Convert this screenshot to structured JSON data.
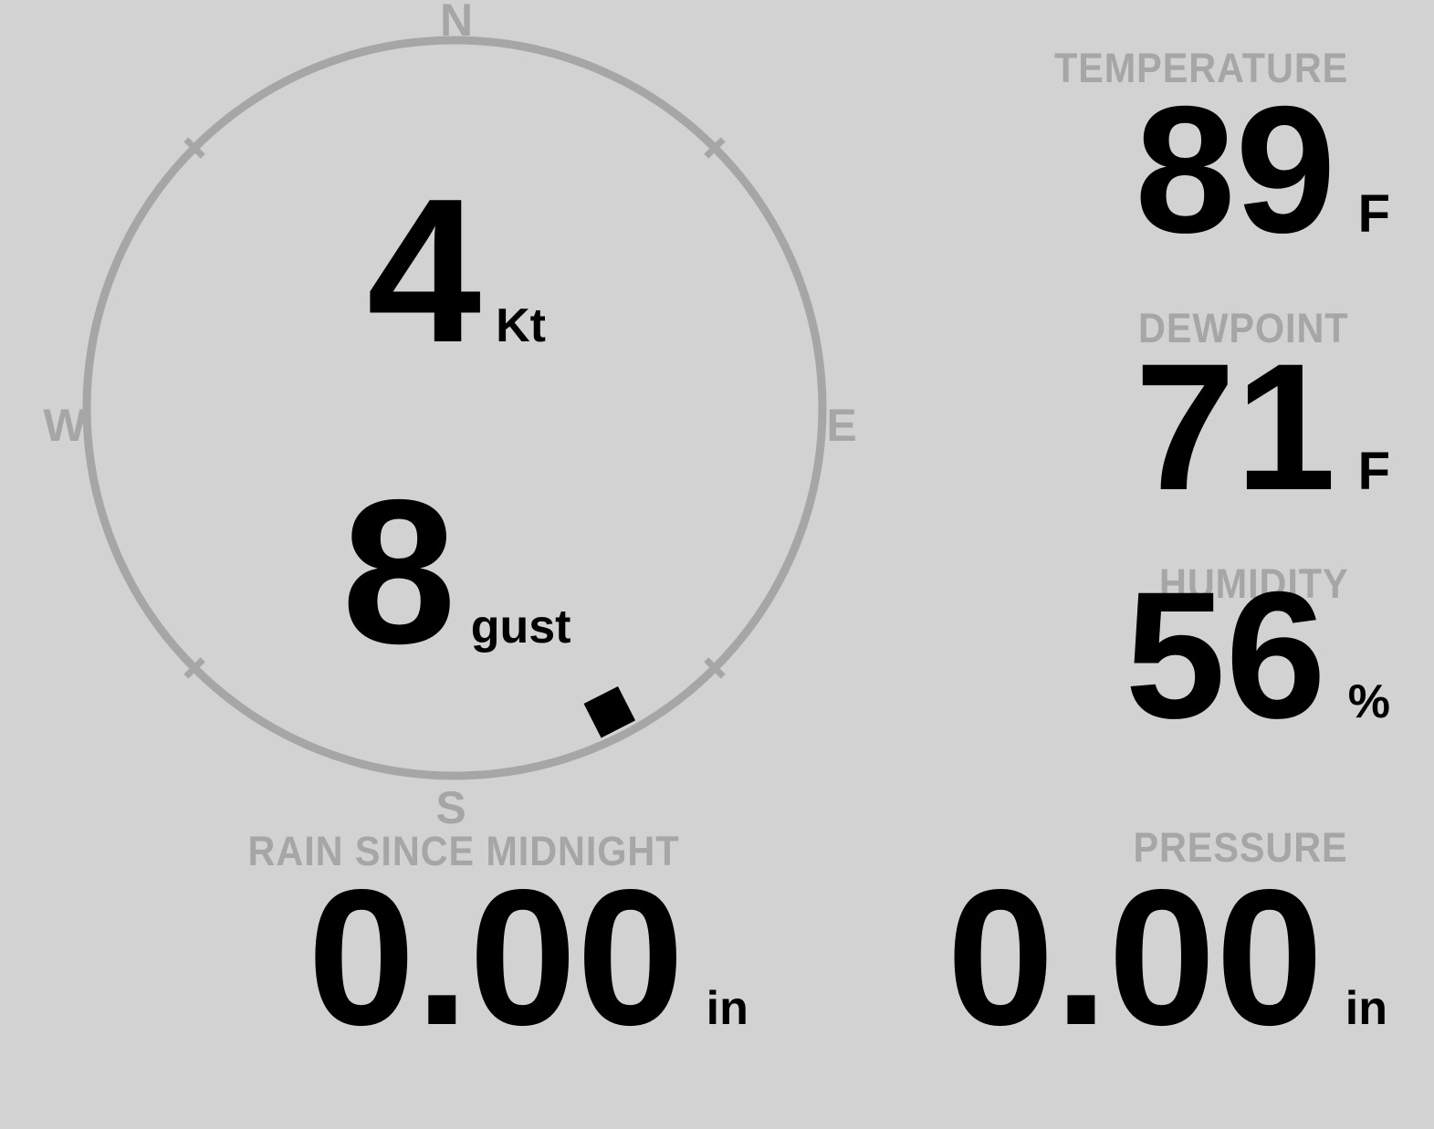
{
  "colors": {
    "background": "#d2d2d2",
    "muted_gray": "#a6a6a6",
    "value_black": "#000000"
  },
  "compass": {
    "cardinals": {
      "north": "N",
      "east": "E",
      "south": "S",
      "west": "W"
    },
    "wind_speed": {
      "value": "4",
      "unit": "Kt"
    },
    "wind_gust": {
      "value": "8",
      "unit": "gust"
    },
    "direction_marker": {
      "bearing_deg": 153
    }
  },
  "metrics": {
    "temperature": {
      "label": "TEMPERATURE",
      "value": "89",
      "unit": "F"
    },
    "dewpoint": {
      "label": "DEWPOINT",
      "value": "71",
      "unit": "F"
    },
    "humidity": {
      "label": "HUMIDITY",
      "value": "56",
      "unit": "%"
    },
    "rain": {
      "label": "RAIN SINCE MIDNIGHT",
      "value": "0.00",
      "unit": "in"
    },
    "pressure": {
      "label": "PRESSURE",
      "value": "0.00",
      "unit": "in"
    }
  }
}
